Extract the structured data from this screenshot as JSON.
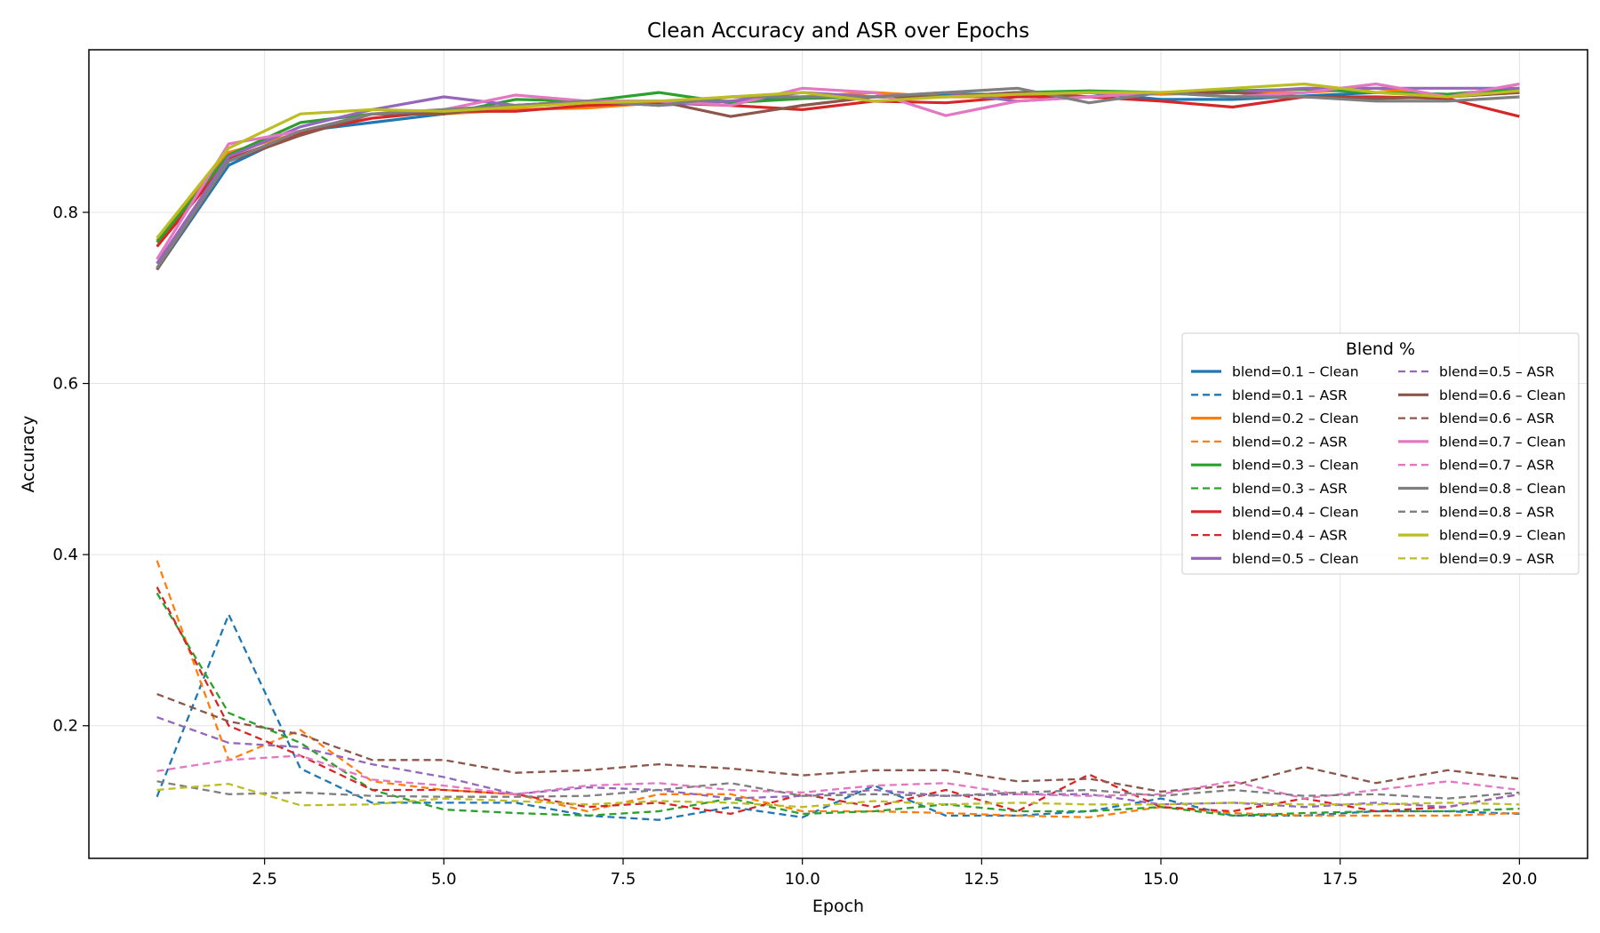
{
  "chart_data": {
    "type": "line",
    "title": "Clean Accuracy and ASR over Epochs",
    "xlabel": "Epoch",
    "ylabel": "Accuracy",
    "xlim": [
      0.05,
      20.95
    ],
    "ylim": [
      0.045,
      0.99
    ],
    "xticks": [
      2.5,
      5.0,
      7.5,
      10.0,
      12.5,
      15.0,
      17.5,
      20.0
    ],
    "xtick_labels": [
      "2.5",
      "5.0",
      "7.5",
      "10.0",
      "12.5",
      "15.0",
      "17.5",
      "20.0"
    ],
    "yticks": [
      0.2,
      0.4,
      0.6,
      0.8
    ],
    "ytick_labels": [
      "0.2",
      "0.4",
      "0.6",
      "0.8"
    ],
    "grid": true,
    "legend": {
      "title": "Blend %",
      "placement": "center-right",
      "columns": 2
    },
    "x": [
      1,
      2,
      3,
      4,
      5,
      6,
      7,
      8,
      9,
      10,
      11,
      12,
      13,
      14,
      15,
      16,
      17,
      18,
      19,
      20
    ],
    "series": [
      {
        "name": "blend=0.1 – Clean",
        "color": "#1f77b4",
        "dash": "solid",
        "values": [
          0.733,
          0.855,
          0.895,
          0.905,
          0.915,
          0.925,
          0.928,
          0.93,
          0.93,
          0.935,
          0.935,
          0.938,
          0.938,
          0.94,
          0.932,
          0.932,
          0.936,
          0.94,
          0.938,
          0.942
        ]
      },
      {
        "name": "blend=0.1 – ASR",
        "color": "#1f77b4",
        "dash": "dashed",
        "values": [
          0.117,
          0.33,
          0.15,
          0.11,
          0.11,
          0.11,
          0.095,
          0.09,
          0.105,
          0.093,
          0.13,
          0.095,
          0.095,
          0.1,
          0.115,
          0.095,
          0.095,
          0.1,
          0.1,
          0.097
        ]
      },
      {
        "name": "blend=0.2 – Clean",
        "color": "#ff7f0e",
        "dash": "solid",
        "values": [
          0.767,
          0.87,
          0.893,
          0.915,
          0.915,
          0.92,
          0.922,
          0.928,
          0.935,
          0.935,
          0.94,
          0.935,
          0.935,
          0.94,
          0.938,
          0.94,
          0.94,
          0.945,
          0.935,
          0.94
        ]
      },
      {
        "name": "blend=0.2 – ASR",
        "color": "#ff7f0e",
        "dash": "dashed",
        "values": [
          0.393,
          0.16,
          0.195,
          0.135,
          0.125,
          0.12,
          0.1,
          0.12,
          0.12,
          0.1,
          0.1,
          0.098,
          0.095,
          0.093,
          0.105,
          0.098,
          0.095,
          0.095,
          0.095,
          0.098
        ]
      },
      {
        "name": "blend=0.3 – Clean",
        "color": "#2ca02c",
        "dash": "solid",
        "values": [
          0.765,
          0.867,
          0.905,
          0.915,
          0.915,
          0.932,
          0.93,
          0.94,
          0.928,
          0.933,
          0.935,
          0.935,
          0.94,
          0.942,
          0.94,
          0.942,
          0.944,
          0.94,
          0.938,
          0.945
        ]
      },
      {
        "name": "blend=0.3 – ASR",
        "color": "#2ca02c",
        "dash": "dashed",
        "values": [
          0.355,
          0.215,
          0.18,
          0.125,
          0.102,
          0.098,
          0.095,
          0.1,
          0.115,
          0.097,
          0.1,
          0.108,
          0.1,
          0.1,
          0.105,
          0.095,
          0.098,
          0.1,
          0.1,
          0.103
        ]
      },
      {
        "name": "blend=0.4 – Clean",
        "color": "#d62728",
        "dash": "solid",
        "values": [
          0.76,
          0.862,
          0.893,
          0.91,
          0.918,
          0.918,
          0.925,
          0.928,
          0.925,
          0.92,
          0.93,
          0.928,
          0.935,
          0.935,
          0.93,
          0.923,
          0.935,
          0.935,
          0.933,
          0.912
        ]
      },
      {
        "name": "blend=0.4 – ASR",
        "color": "#d62728",
        "dash": "dashed",
        "values": [
          0.362,
          0.2,
          0.165,
          0.125,
          0.125,
          0.12,
          0.105,
          0.11,
          0.097,
          0.12,
          0.105,
          0.125,
          0.1,
          0.143,
          0.105,
          0.1,
          0.115,
          0.1,
          0.105,
          0.12
        ]
      },
      {
        "name": "blend=0.5 – Clean",
        "color": "#9467bd",
        "dash": "solid",
        "values": [
          0.74,
          0.865,
          0.9,
          0.92,
          0.935,
          0.925,
          0.93,
          0.925,
          0.93,
          0.94,
          0.935,
          0.94,
          0.93,
          0.935,
          0.94,
          0.94,
          0.945,
          0.945,
          0.945,
          0.945
        ]
      },
      {
        "name": "blend=0.5 – ASR",
        "color": "#9467bd",
        "dash": "dashed",
        "values": [
          0.21,
          0.18,
          0.175,
          0.155,
          0.14,
          0.12,
          0.128,
          0.125,
          0.115,
          0.118,
          0.125,
          0.118,
          0.12,
          0.12,
          0.108,
          0.11,
          0.105,
          0.11,
          0.105,
          0.12
        ]
      },
      {
        "name": "blend=0.6 – Clean",
        "color": "#8c564b",
        "dash": "solid",
        "values": [
          0.733,
          0.86,
          0.89,
          0.915,
          0.915,
          0.925,
          0.93,
          0.93,
          0.912,
          0.925,
          0.935,
          0.935,
          0.94,
          0.935,
          0.94,
          0.94,
          0.935,
          0.933,
          0.935,
          0.94
        ]
      },
      {
        "name": "blend=0.6 – ASR",
        "color": "#8c564b",
        "dash": "dashed",
        "values": [
          0.237,
          0.205,
          0.19,
          0.16,
          0.16,
          0.145,
          0.148,
          0.155,
          0.15,
          0.142,
          0.148,
          0.148,
          0.135,
          0.138,
          0.123,
          0.13,
          0.152,
          0.133,
          0.148,
          0.138
        ]
      },
      {
        "name": "blend=0.7 – Clean",
        "color": "#e377c2",
        "dash": "solid",
        "values": [
          0.745,
          0.88,
          0.895,
          0.915,
          0.92,
          0.937,
          0.93,
          0.93,
          0.925,
          0.945,
          0.94,
          0.913,
          0.93,
          0.935,
          0.94,
          0.935,
          0.94,
          0.95,
          0.935,
          0.95
        ]
      },
      {
        "name": "blend=0.7 – ASR",
        "color": "#e377c2",
        "dash": "dashed",
        "values": [
          0.147,
          0.16,
          0.165,
          0.137,
          0.13,
          0.12,
          0.13,
          0.133,
          0.125,
          0.122,
          0.13,
          0.133,
          0.12,
          0.118,
          0.12,
          0.135,
          0.115,
          0.125,
          0.135,
          0.125
        ]
      },
      {
        "name": "blend=0.8 – Clean",
        "color": "#7f7f7f",
        "dash": "solid",
        "values": [
          0.735,
          0.86,
          0.895,
          0.915,
          0.92,
          0.925,
          0.93,
          0.925,
          0.935,
          0.935,
          0.935,
          0.94,
          0.945,
          0.928,
          0.94,
          0.935,
          0.935,
          0.93,
          0.93,
          0.935
        ]
      },
      {
        "name": "blend=0.8 – ASR",
        "color": "#7f7f7f",
        "dash": "dashed",
        "values": [
          0.135,
          0.12,
          0.122,
          0.118,
          0.117,
          0.117,
          0.118,
          0.125,
          0.133,
          0.118,
          0.12,
          0.118,
          0.122,
          0.125,
          0.118,
          0.125,
          0.118,
          0.12,
          0.115,
          0.122
        ]
      },
      {
        "name": "blend=0.9 – Clean",
        "color": "#bcbd22",
        "dash": "solid",
        "values": [
          0.77,
          0.875,
          0.915,
          0.92,
          0.918,
          0.923,
          0.928,
          0.93,
          0.935,
          0.94,
          0.93,
          0.935,
          0.938,
          0.94,
          0.94,
          0.945,
          0.95,
          0.94,
          0.935,
          0.942
        ]
      },
      {
        "name": "blend=0.9 – ASR",
        "color": "#bcbd22",
        "dash": "dashed",
        "values": [
          0.125,
          0.132,
          0.107,
          0.108,
          0.115,
          0.112,
          0.108,
          0.112,
          0.11,
          0.105,
          0.112,
          0.108,
          0.11,
          0.108,
          0.108,
          0.11,
          0.108,
          0.108,
          0.11,
          0.108
        ]
      }
    ]
  }
}
